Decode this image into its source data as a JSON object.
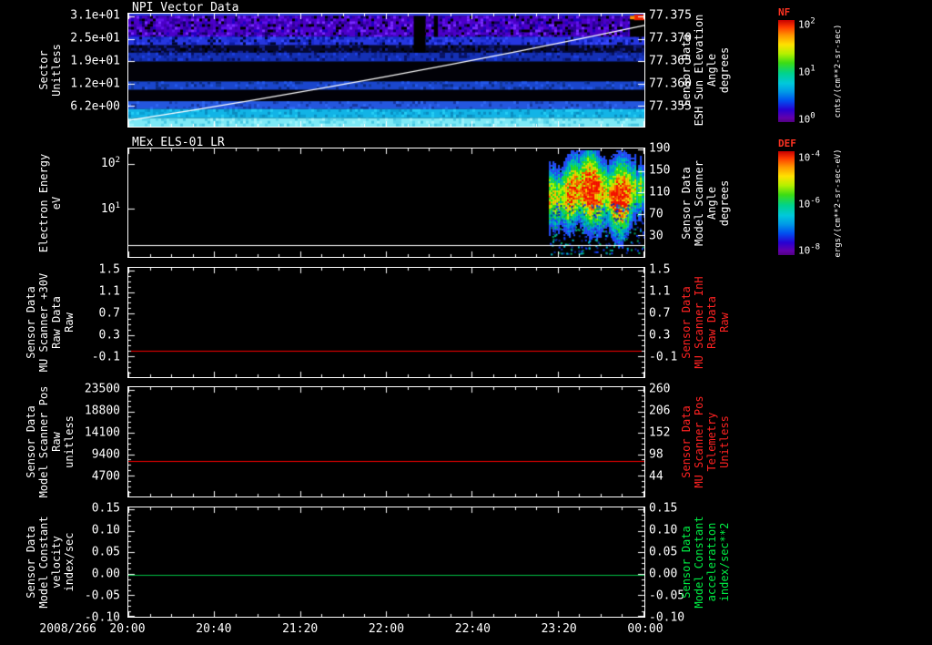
{
  "window": {
    "background": "#000000",
    "foreground": "#ffffff"
  },
  "x_axis": {
    "date_label": "2008/266",
    "tick_labels": [
      "20:00",
      "20:40",
      "21:20",
      "22:00",
      "22:40",
      "23:20",
      "00:00"
    ],
    "start": "2008/266 20:00",
    "end": "2008/267 00:00",
    "minor_divisions": 4
  },
  "chart_data": [
    {
      "type": "heatmap",
      "title": "NPI Vector Data",
      "ylabel": "Sector\nUnitless",
      "ylabel_color": "#ffffff",
      "y2label": "Sensor Data\nESH Sun Elevation\nAngle\ndegrees",
      "y2label_color": "#ffffff",
      "ylim": [
        0,
        31.7
      ],
      "y2lim": [
        77.3545,
        77.3755
      ],
      "yticks": [
        {
          "label": "3.1e+01",
          "value": 31.0,
          "f": 0.024
        },
        {
          "label": "2.5e+01",
          "value": 25.0,
          "f": 0.222
        },
        {
          "label": "1.9e+01",
          "value": 19.0,
          "f": 0.421
        },
        {
          "label": "1.2e+01",
          "value": 12.0,
          "f": 0.619
        },
        {
          "label": "6.2e+00",
          "value": 6.2,
          "f": 0.817
        }
      ],
      "y2ticks": [
        {
          "label": "77.375",
          "value": 77.375,
          "f": 0.024
        },
        {
          "label": "77.370",
          "value": 77.37,
          "f": 0.222
        },
        {
          "label": "77.365",
          "value": 77.365,
          "f": 0.421
        },
        {
          "label": "77.360",
          "value": 77.36,
          "f": 0.619
        },
        {
          "label": "77.355",
          "value": 77.355,
          "f": 0.817
        }
      ],
      "colorbar": {
        "name": "NF",
        "name_color": "#ff3322",
        "units": "cnts/(cm**2-sr-sec)",
        "ticks": [
          {
            "label": "10^2",
            "f": 0.04
          },
          {
            "label": "10^1",
            "f": 0.5
          },
          {
            "label": "10^0",
            "f": 0.96
          }
        ]
      },
      "overlay_line": {
        "name": "ESH Sun Elevation Angle",
        "axis": "right",
        "color": "#ffffff",
        "x": [
          "20:00",
          "22:00",
          "00:00"
        ],
        "y": [
          77.352,
          77.363,
          77.373
        ],
        "f_start": 0.945,
        "f_mid_ctrl": 0.588,
        "f_end": 0.103
      },
      "bands": [
        {
          "f0": 0.0,
          "f1": 0.02,
          "color": "#3347e0"
        },
        {
          "f0": 0.02,
          "f1": 0.205,
          "color": "#4b00c8",
          "palette": [
            "#5f10e8",
            "#3c00a8",
            "#2a0096",
            "#1e00c0",
            "#7a2bff",
            "#120060",
            "#000000"
          ],
          "density": 0.6
        },
        {
          "f0": 0.205,
          "f1": 0.28,
          "color": "#2636e0",
          "palette": [
            "#1a2ace",
            "#3648ff",
            "#0d1ca6",
            "#00072e"
          ],
          "density": 0.45
        },
        {
          "f0": 0.28,
          "f1": 0.345,
          "color": "#050830",
          "palette": [
            "#0c1670",
            "#000000",
            "#131f8e"
          ],
          "density": 0.35
        },
        {
          "f0": 0.345,
          "f1": 0.425,
          "color": "#1430b4",
          "palette": [
            "#0c2390",
            "#1d3fe2",
            "#081260"
          ],
          "density": 0.35
        },
        {
          "f0": 0.425,
          "f1": 0.6,
          "color": "#010107"
        },
        {
          "f0": 0.6,
          "f1": 0.675,
          "color": "#1a46cc",
          "palette": [
            "#123899",
            "#2458ea",
            "#0c2a7e"
          ],
          "density": 0.3
        },
        {
          "f0": 0.675,
          "f1": 0.775,
          "color": "#010107"
        },
        {
          "f0": 0.775,
          "f1": 0.845,
          "color": "#2457de",
          "palette": [
            "#1a46bb",
            "#3068f2",
            "#16379e"
          ],
          "density": 0.3
        },
        {
          "f0": 0.845,
          "f1": 0.925,
          "color": "#12b4e6",
          "palette": [
            "#0a9ed2",
            "#24cdf4",
            "#0b8cc0"
          ],
          "density": 0.35
        },
        {
          "f0": 0.925,
          "f1": 1.0,
          "color": "#7de9f6",
          "palette": [
            "#5ad6ec",
            "#9df3fb",
            "#47c8e2"
          ],
          "density": 0.35
        }
      ],
      "gaps": [
        {
          "x0": 0.553,
          "x1": 0.576,
          "f0": 0.02,
          "f1": 0.345
        },
        {
          "x0": 0.592,
          "x1": 0.6,
          "f0": 0.02,
          "f1": 0.205
        },
        {
          "x0": 0.972,
          "x1": 1.0,
          "f0": 0.02,
          "f1": 0.205
        }
      ],
      "hotspots": [
        {
          "x0": 0.98,
          "x1": 1.0,
          "f0": 0.008,
          "f1": 0.058,
          "color": "#ee2600"
        },
        {
          "x0": 0.972,
          "x1": 0.981,
          "f0": 0.02,
          "f1": 0.05,
          "color": "#ff9100"
        }
      ]
    },
    {
      "type": "heatmap",
      "title": "MEx ELS-01 LR",
      "ylabel": "Electron Energy\neV",
      "ylabel_color": "#ffffff",
      "y2label": "Sensor Data\nModel Scanner\nAngle\ndegrees",
      "y2label_color": "#ffffff",
      "yticks": [
        {
          "label": "10^2",
          "value": 100,
          "f": 0.14
        },
        {
          "label": "10^1",
          "value": 10,
          "f": 0.554
        }
      ],
      "y2ticks": [
        {
          "label": "190",
          "value": 190,
          "f": 0.008
        },
        {
          "label": "150",
          "value": 150,
          "f": 0.207
        },
        {
          "label": "110",
          "value": 110,
          "f": 0.405
        },
        {
          "label": "70",
          "value": 70,
          "f": 0.603
        },
        {
          "label": "30",
          "value": 30,
          "f": 0.802
        }
      ],
      "colorbar": {
        "name": "DEF",
        "name_color": "#ff3322",
        "units": "ergs/(cm**2-sr-sec-eV)",
        "ticks": [
          {
            "label": "10^-4",
            "f": 0.05
          },
          {
            "label": "10^-6",
            "f": 0.5
          },
          {
            "label": "10^-8",
            "f": 0.95
          }
        ]
      },
      "burst": {
        "x0": 0.815,
        "x1": 1.0,
        "center_f": 0.4,
        "cores": [
          {
            "x": 0.858,
            "sigma": 0.02,
            "amp": 0.8
          },
          {
            "x": 0.895,
            "sigma": 0.025,
            "amp": 1.0
          },
          {
            "x": 0.952,
            "sigma": 0.022,
            "amp": 0.97
          }
        ],
        "base_amp": 0.5
      },
      "baseline_f": 0.893
    },
    {
      "type": "line",
      "title": "",
      "ylabel": "Sensor Data\nMU Scanner +30V\nRaw Data\nRaw",
      "ylabel_color": "#ffffff",
      "y2label": "Sensor Data\nMU Scanner InH\nRaw Data\nRaw",
      "y2label_color": "#ff2222",
      "ylim": [
        -0.5,
        1.54
      ],
      "yticks": [
        {
          "label": "1.5",
          "value": 1.5,
          "f": 0.025
        },
        {
          "label": "1.1",
          "value": 1.1,
          "f": 0.221
        },
        {
          "label": "0.7",
          "value": 0.7,
          "f": 0.418
        },
        {
          "label": "0.3",
          "value": 0.3,
          "f": 0.615
        },
        {
          "label": "-0.1",
          "value": -0.1,
          "f": 0.811
        }
      ],
      "y2ticks": [
        {
          "label": "1.5",
          "value": 1.5,
          "f": 0.025
        },
        {
          "label": "1.1",
          "value": 1.1,
          "f": 0.221
        },
        {
          "label": "0.7",
          "value": 0.7,
          "f": 0.418
        },
        {
          "label": "0.3",
          "value": 0.3,
          "f": 0.615
        },
        {
          "label": "-0.1",
          "value": -0.1,
          "f": 0.811
        }
      ],
      "series": [
        {
          "name": "MU Scanner +30V Raw Data",
          "color": "#ff0000",
          "constant_value": 0.0,
          "f": 0.76
        }
      ]
    },
    {
      "type": "line",
      "title": "",
      "ylabel": "Sensor Data\nModel Scanner Pos\nRaw\nunitless",
      "ylabel_color": "#ffffff",
      "y2label": "Sensor Data\nMU Scanner Pos\nTelemetry\nUnitless",
      "y2label_color": "#ff2222",
      "ylim": [
        0,
        24100
      ],
      "y2lim": [
        -9,
        267
      ],
      "yticks": [
        {
          "label": "23500",
          "value": 23500,
          "f": 0.025
        },
        {
          "label": "18800",
          "value": 18800,
          "f": 0.221
        },
        {
          "label": "14100",
          "value": 14100,
          "f": 0.418
        },
        {
          "label": "9400",
          "value": 9400,
          "f": 0.615
        },
        {
          "label": "4700",
          "value": 4700,
          "f": 0.811
        }
      ],
      "y2ticks": [
        {
          "label": "260",
          "value": 260,
          "f": 0.025
        },
        {
          "label": "206",
          "value": 206,
          "f": 0.221
        },
        {
          "label": "152",
          "value": 152,
          "f": 0.418
        },
        {
          "label": "98",
          "value": 98,
          "f": 0.615
        },
        {
          "label": "44",
          "value": 44,
          "f": 0.811
        }
      ],
      "series": [
        {
          "name": "Model Scanner Pos Raw",
          "color": "#ff0000",
          "constant_value": 7900,
          "f": 0.675
        }
      ]
    },
    {
      "type": "line",
      "title": "",
      "ylabel": "Sensor Data\nModel Constant\nvelocity\nindex/sec",
      "ylabel_color": "#ffffff",
      "y2label": "Sensor Data\nModel Constant\nacceleration\nindex/sec**2",
      "y2label_color": "#00ee44",
      "ylim": [
        -0.1,
        0.154
      ],
      "yticks": [
        {
          "label": "0.15",
          "value": 0.15,
          "f": 0.016
        },
        {
          "label": "0.10",
          "value": 0.1,
          "f": 0.213
        },
        {
          "label": "0.05",
          "value": 0.05,
          "f": 0.41
        },
        {
          "label": "0.00",
          "value": 0.0,
          "f": 0.607
        },
        {
          "label": "-0.05",
          "value": -0.05,
          "f": 0.803
        },
        {
          "label": "-0.10",
          "value": -0.1,
          "f": 1.0
        }
      ],
      "y2ticks": [
        {
          "label": "0.15",
          "value": 0.15,
          "f": 0.016
        },
        {
          "label": "0.10",
          "value": 0.1,
          "f": 0.213
        },
        {
          "label": "0.05",
          "value": 0.05,
          "f": 0.41
        },
        {
          "label": "0.00",
          "value": 0.0,
          "f": 0.607
        },
        {
          "label": "-0.05",
          "value": -0.05,
          "f": 0.803
        },
        {
          "label": "-0.10",
          "value": -0.1,
          "f": 1.0
        }
      ],
      "series": [
        {
          "name": "Model Constant velocity",
          "color": "#00c245",
          "constant_value": 0.0,
          "f": 0.62
        }
      ]
    }
  ]
}
